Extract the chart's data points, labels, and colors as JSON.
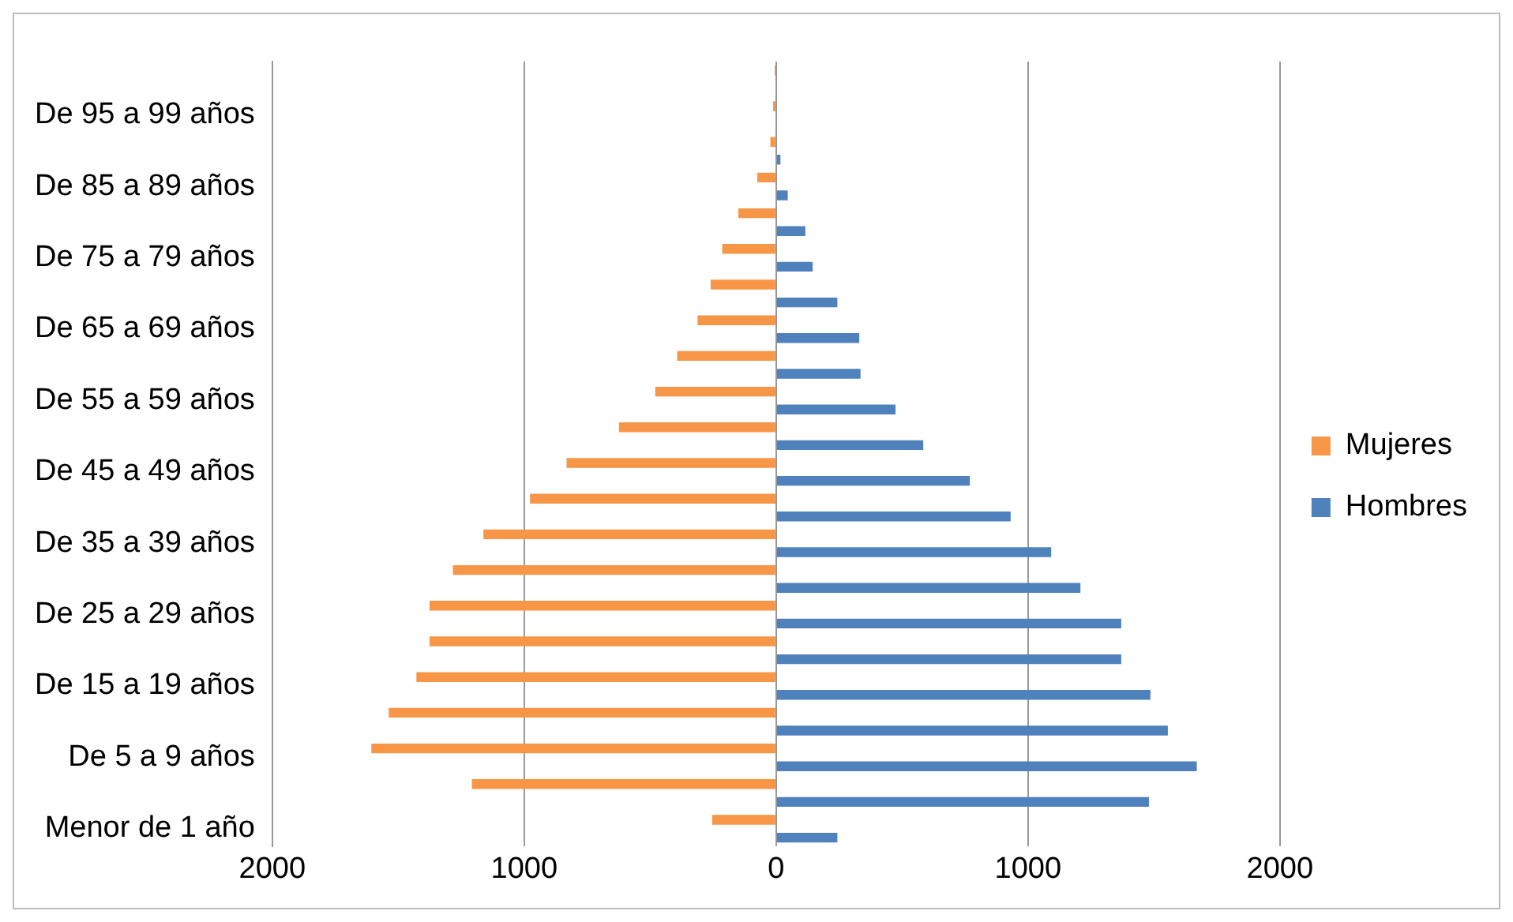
{
  "chart_data": {
    "type": "bar",
    "orientation": "horizontal",
    "categories": [
      null,
      "De 95 a 99 años",
      null,
      "De 85 a 89 años",
      null,
      "De 75 a 79 años",
      null,
      "De 65 a 69 años",
      null,
      "De 55 a 59 años",
      null,
      "De 45 a 49 años",
      null,
      "De 35 a 39 años",
      null,
      "De 25 a 29 años",
      null,
      "De 15 a 19 años",
      null,
      "De 5 a 9 años",
      null,
      "Menor de 1 año"
    ],
    "series": [
      {
        "name": "Mujeres",
        "color": "#f79646",
        "values": [
          -6,
          -12,
          -23,
          -75,
          -150,
          -214,
          -260,
          -312,
          -393,
          -480,
          -624,
          -832,
          -977,
          -1162,
          -1283,
          -1376,
          -1376,
          -1428,
          -1538,
          -1607,
          -1208,
          -254
        ]
      },
      {
        "name": "Hombres",
        "color": "#4f81bd",
        "values": [
          null,
          null,
          17,
          46,
          116,
          145,
          243,
          330,
          335,
          474,
          584,
          769,
          931,
          1092,
          1208,
          1370,
          1370,
          1486,
          1555,
          1670,
          1480,
          243
        ]
      }
    ],
    "xlim": [
      -2000,
      2000
    ],
    "xticks": [
      {
        "value": -2000,
        "label": "2000"
      },
      {
        "value": -1000,
        "label": "1000"
      },
      0,
      1000,
      2000
    ],
    "grid": "x",
    "legend": "right"
  }
}
